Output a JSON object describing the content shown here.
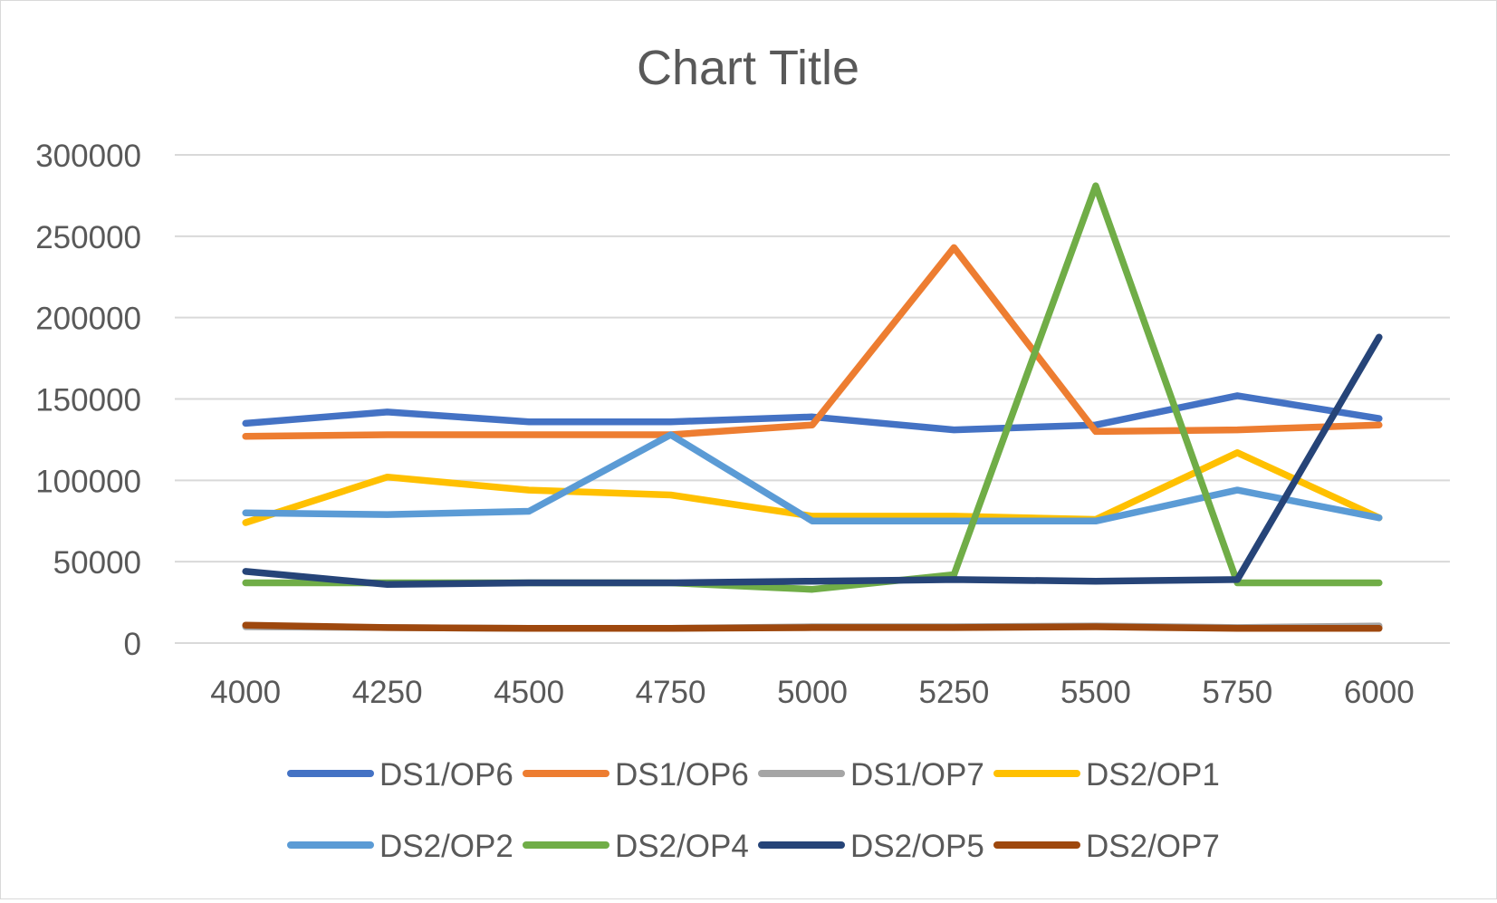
{
  "chart_data": {
    "type": "line",
    "title": "Chart Title",
    "xlabel": "",
    "ylabel": "",
    "categories": [
      "4000",
      "4250",
      "4500",
      "4750",
      "5000",
      "5250",
      "5500",
      "5750",
      "6000"
    ],
    "ylim": [
      0,
      300000
    ],
    "yticks": [
      "0",
      "50000",
      "100000",
      "150000",
      "200000",
      "250000",
      "300000"
    ],
    "grid": true,
    "legend_position": "bottom",
    "series": [
      {
        "name": "DS1/OP6",
        "color": "#4472C4",
        "values": [
          135000,
          142000,
          136000,
          136000,
          139000,
          131000,
          134000,
          152000,
          138000
        ]
      },
      {
        "name": "DS1/OP6",
        "color": "#ED7D31",
        "values": [
          127000,
          128000,
          128000,
          128000,
          134000,
          243000,
          130000,
          131000,
          134000
        ]
      },
      {
        "name": "DS1/OP7",
        "color": "#A5A5A5",
        "values": [
          10000,
          9500,
          9000,
          9000,
          10000,
          10000,
          10500,
          9500,
          10500
        ]
      },
      {
        "name": "DS2/OP1",
        "color": "#FFC000",
        "values": [
          74000,
          102000,
          94000,
          91000,
          78000,
          78000,
          76000,
          117000,
          77000
        ]
      },
      {
        "name": "DS2/OP2",
        "color": "#5B9BD5",
        "values": [
          80000,
          79000,
          81000,
          128000,
          75000,
          75000,
          75000,
          94000,
          77000
        ]
      },
      {
        "name": "DS2/OP4",
        "color": "#70AD47",
        "values": [
          37000,
          37000,
          37000,
          37000,
          33000,
          42000,
          281000,
          37000,
          37000
        ]
      },
      {
        "name": "DS2/OP5",
        "color": "#264478",
        "values": [
          44000,
          36000,
          37000,
          37000,
          38000,
          39000,
          38000,
          39000,
          188000
        ]
      },
      {
        "name": "DS2/OP7",
        "color": "#9E480E",
        "values": [
          11000,
          9500,
          9000,
          9000,
          9500,
          9500,
          10000,
          9000,
          9000
        ]
      }
    ]
  }
}
